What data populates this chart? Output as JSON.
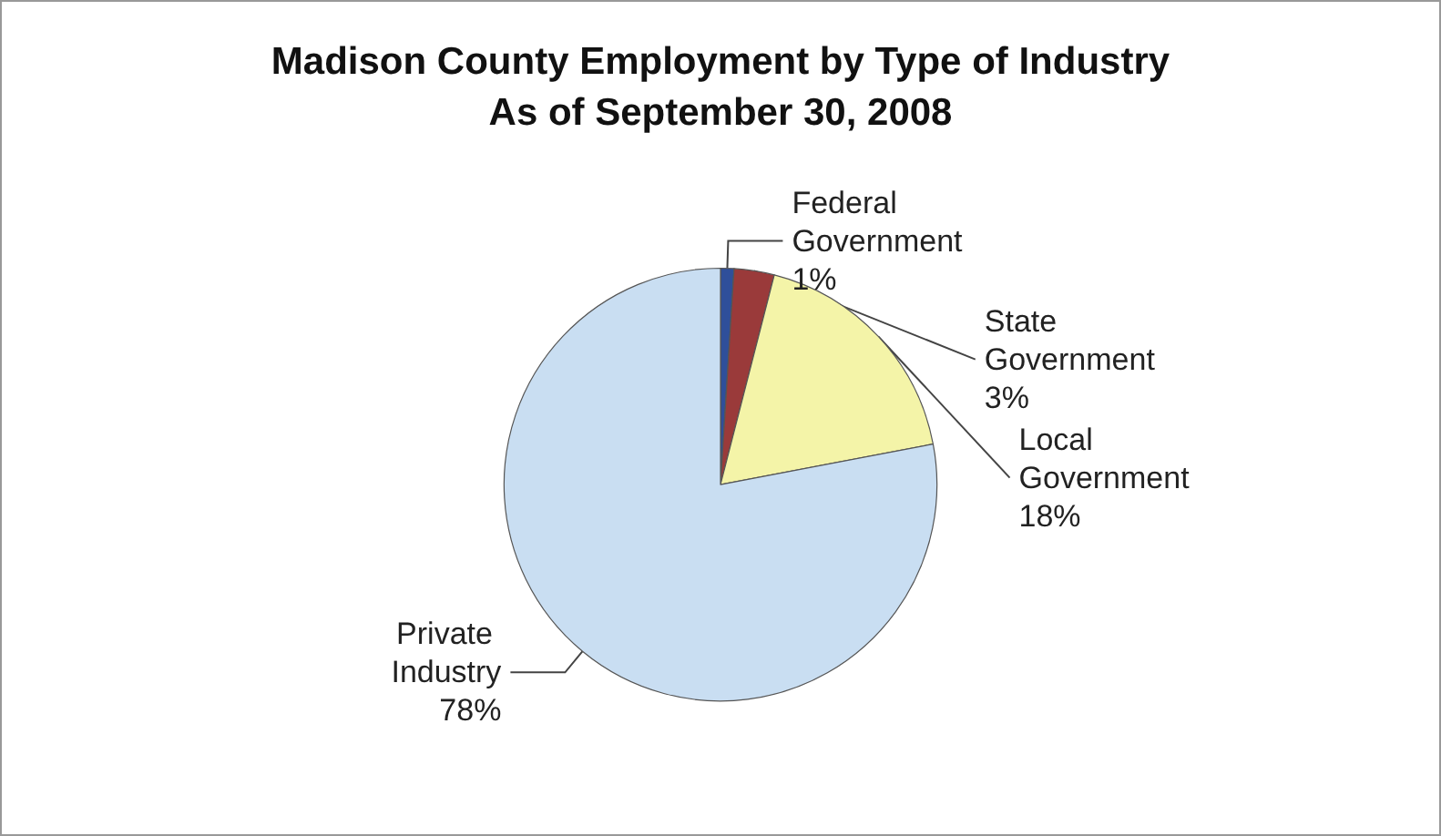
{
  "chart_data": {
    "type": "pie",
    "title": "Madison County Employment by Type of Industry\nAs of September 30, 2008",
    "categories": [
      "Federal Government",
      "State Government",
      "Local Government",
      "Private Industry"
    ],
    "values": [
      1,
      3,
      18,
      78
    ],
    "colors": [
      "#2f4f9a",
      "#9a3a3a",
      "#f4f4a8",
      "#c9def2"
    ],
    "value_labels": [
      "1%",
      "3%",
      "18%",
      "78%"
    ],
    "legend": false
  }
}
